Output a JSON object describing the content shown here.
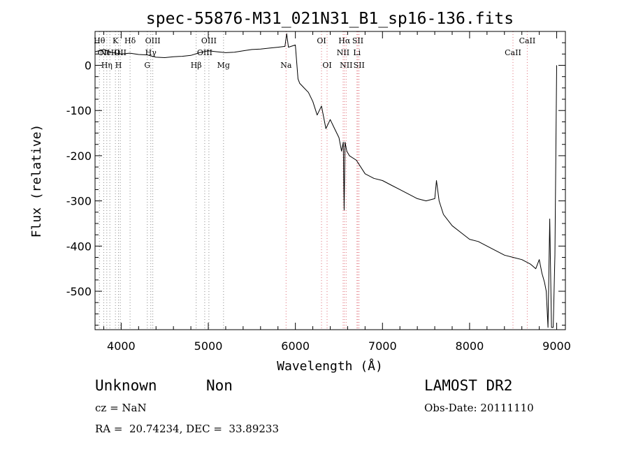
{
  "chart_data": {
    "type": "line",
    "title": "spec-55876-M31_021N31_B1_sp16-136.fits",
    "xlabel": "Wavelength (Å)",
    "ylabel": "Flux (relative)",
    "xlim": [
      3700,
      9100
    ],
    "ylim": [
      -585,
      75
    ],
    "xticks": [
      4000,
      5000,
      6000,
      7000,
      8000,
      9000
    ],
    "yticks": [
      0,
      -100,
      -200,
      -300,
      -400,
      -500
    ],
    "grid": false,
    "series": [
      {
        "x": [
          3700,
          3800,
          3900,
          4000,
          4100,
          4200,
          4300,
          4400,
          4500,
          4600,
          4700,
          4800,
          4900,
          5000,
          5100,
          5200,
          5300,
          5400,
          5500,
          5600,
          5700,
          5800,
          5880,
          5900,
          5920,
          5950,
          6000,
          6030,
          6050,
          6100,
          6150,
          6200,
          6250,
          6300,
          6350,
          6400,
          6450,
          6500,
          6530,
          6550,
          6560,
          6570,
          6590,
          6620,
          6700,
          6800,
          6900,
          7000,
          7100,
          7200,
          7300,
          7400,
          7500,
          7600,
          7620,
          7650,
          7700,
          7800,
          7900,
          8000,
          8100,
          8200,
          8300,
          8400,
          8500,
          8600,
          8700,
          8760,
          8800,
          8830,
          8860,
          8880,
          8900,
          8920,
          8940,
          8960,
          8980,
          9000
        ],
        "y": [
          30,
          35,
          28,
          25,
          27,
          24,
          23,
          18,
          17,
          19,
          20,
          22,
          28,
          32,
          30,
          28,
          29,
          32,
          35,
          36,
          38,
          40,
          42,
          70,
          40,
          42,
          45,
          -30,
          -40,
          -50,
          -60,
          -80,
          -110,
          -90,
          -140,
          -120,
          -140,
          -160,
          -190,
          -170,
          -320,
          -170,
          -190,
          -200,
          -210,
          -240,
          -250,
          -255,
          -265,
          -275,
          -285,
          -295,
          -300,
          -295,
          -255,
          -300,
          -330,
          -355,
          -370,
          -385,
          -390,
          -400,
          -410,
          -420,
          -425,
          -430,
          -440,
          -450,
          -430,
          -460,
          -480,
          -500,
          -580,
          -340,
          -580,
          -580,
          -420,
          0
        ]
      }
    ],
    "lines": [
      {
        "wavelength": 3750,
        "label": "Hθ",
        "row": 1
      },
      {
        "wavelength": 3800,
        "label": "OII",
        "row": 2
      },
      {
        "wavelength": 3835,
        "label": "Hη",
        "row": 3
      },
      {
        "wavelength": 3870,
        "label": "NeIII",
        "row": 2
      },
      {
        "wavelength": 3934,
        "label": "K",
        "row": 1
      },
      {
        "wavelength": 3969,
        "label": "H",
        "row": 3
      },
      {
        "wavelength": 3990,
        "label": "OII",
        "row": 2
      },
      {
        "wavelength": 4102,
        "label": "Hδ",
        "row": 1
      },
      {
        "wavelength": 4300,
        "label": "G",
        "row": 3
      },
      {
        "wavelength": 4340,
        "label": "Hγ",
        "row": 2
      },
      {
        "wavelength": 4363,
        "label": "OIII",
        "row": 1
      },
      {
        "wavelength": 4861,
        "label": "Hβ",
        "row": 3
      },
      {
        "wavelength": 4959,
        "label": "OIII",
        "row": 2
      },
      {
        "wavelength": 5007,
        "label": "OIII",
        "row": 1
      },
      {
        "wavelength": 5175,
        "label": "Mg",
        "row": 3
      },
      {
        "wavelength": 5893,
        "label": "Na",
        "row": 3
      },
      {
        "wavelength": 6300,
        "label": "OI",
        "row": 1
      },
      {
        "wavelength": 6364,
        "label": "OI",
        "row": 3
      },
      {
        "wavelength": 6548,
        "label": "NII",
        "row": 2
      },
      {
        "wavelength": 6563,
        "label": "Hα",
        "row": 1
      },
      {
        "wavelength": 6583,
        "label": "NII",
        "row": 3
      },
      {
        "wavelength": 6707,
        "label": "Li",
        "row": 2
      },
      {
        "wavelength": 6717,
        "label": "SII",
        "row": 1
      },
      {
        "wavelength": 6731,
        "label": "SII",
        "row": 3
      },
      {
        "wavelength": 8498,
        "label": "CaII",
        "row": 2
      },
      {
        "wavelength": 8662,
        "label": "CaII",
        "row": 1
      }
    ]
  },
  "info": {
    "object_class": "Unknown",
    "subclass": "Non",
    "survey": "LAMOST DR2",
    "cz": "cz = NaN",
    "obs_date": "Obs-Date: 20111110",
    "coords": "RA =  20.74234, DEC =  33.89233"
  }
}
